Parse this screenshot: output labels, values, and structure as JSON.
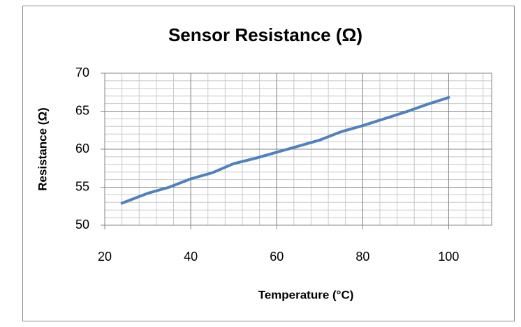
{
  "chart_data": {
    "type": "line",
    "title": "Sensor Resistance (Ω)",
    "x_label": "Temperature (°C)",
    "y_label": "Resistance (Ω)",
    "x": [
      24,
      30,
      35,
      40,
      45,
      50,
      55,
      60,
      65,
      70,
      75,
      80,
      85,
      90,
      95,
      100
    ],
    "series": [
      {
        "name": "Resistance",
        "color": "#4f81bd",
        "values": [
          52.9,
          54.2,
          55,
          56.1,
          56.9,
          58.1,
          58.8,
          59.6,
          60.4,
          61.2,
          62.3,
          63.1,
          64,
          64.9,
          65.9,
          66.8
        ]
      }
    ],
    "xlim": [
      20,
      110
    ],
    "xticks": [
      20,
      40,
      60,
      80,
      100
    ],
    "ylim": [
      50,
      70
    ],
    "yticks": [
      50,
      55,
      60,
      65,
      70
    ],
    "grid": true,
    "xminor_step": 4,
    "yminor_step": 1,
    "legend": false
  }
}
